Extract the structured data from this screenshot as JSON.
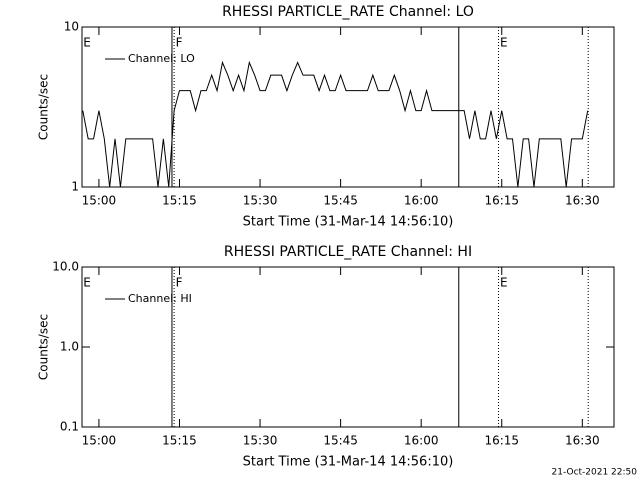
{
  "chart_data": [
    {
      "type": "line",
      "title": "RHESSI PARTICLE_RATE Channel: LO",
      "xlabel": "Start Time (31-Mar-14 14:56:10)",
      "ylabel": "Counts/sec",
      "ylog": true,
      "ylim": [
        1,
        10
      ],
      "yticks": [
        1,
        10
      ],
      "xlim": [
        896.85,
        995.9
      ],
      "xticks": [
        {
          "value": 900,
          "label": "15:00"
        },
        {
          "value": 915,
          "label": "15:15"
        },
        {
          "value": 930,
          "label": "15:30"
        },
        {
          "value": 945,
          "label": "15:45"
        },
        {
          "value": 960,
          "label": "16:00"
        },
        {
          "value": 975,
          "label": "16:15"
        },
        {
          "value": 990,
          "label": "16:30"
        }
      ],
      "legend": "upper left",
      "series": [
        {
          "name": "Channel: LO",
          "color": "#000000",
          "x": [
            897,
            898,
            899,
            900,
            901,
            902,
            903,
            904,
            905,
            906,
            907,
            908,
            909,
            910,
            911,
            912,
            913,
            914,
            915,
            916,
            917,
            918,
            919,
            920,
            921,
            922,
            923,
            924,
            925,
            926,
            927,
            928,
            929,
            930,
            931,
            932,
            933,
            934,
            935,
            936,
            937,
            938,
            939,
            940,
            941,
            942,
            943,
            944,
            945,
            946,
            947,
            948,
            949,
            950,
            951,
            952,
            953,
            954,
            955,
            956,
            957,
            958,
            959,
            960,
            961,
            962,
            963,
            964,
            965,
            966,
            967,
            968,
            969,
            970,
            971,
            972,
            973,
            974,
            975,
            976,
            977,
            978,
            979,
            980,
            981,
            982,
            983,
            984,
            985,
            986,
            987,
            988,
            989,
            990,
            991
          ],
          "values": [
            3,
            2,
            2,
            3,
            2,
            1,
            2,
            1,
            2,
            2,
            2,
            2,
            2,
            2,
            1,
            2,
            1,
            3,
            4,
            4,
            4,
            3,
            4,
            4,
            5,
            4,
            6,
            5,
            4,
            5,
            4,
            6,
            5,
            4,
            4,
            5,
            5,
            5,
            4,
            5,
            6,
            5,
            5,
            5,
            4,
            5,
            4,
            4,
            5,
            4,
            4,
            4,
            4,
            4,
            5,
            4,
            4,
            4,
            5,
            4,
            3,
            4,
            3,
            3,
            4,
            3,
            3,
            3,
            3,
            3,
            3,
            3,
            2,
            3,
            2,
            2,
            3,
            2,
            3,
            2,
            2,
            1,
            2,
            2,
            1,
            2,
            2,
            2,
            2,
            2,
            1,
            2,
            2,
            2,
            3
          ]
        }
      ],
      "vlines": [
        {
          "x": 913.6,
          "style": "solid"
        },
        {
          "x": 914.0,
          "style": "dotted"
        },
        {
          "x": 967.0,
          "style": "solid"
        },
        {
          "x": 974.4,
          "style": "dotted"
        },
        {
          "x": 991.1,
          "style": "dotted"
        }
      ],
      "annotations": [
        {
          "x": 896.9,
          "label": "E"
        },
        {
          "x": 914.1,
          "label": "F"
        },
        {
          "x": 974.5,
          "label": "E"
        }
      ]
    },
    {
      "type": "line",
      "title": "RHESSI PARTICLE_RATE Channel: HI",
      "xlabel": "Start Time (31-Mar-14 14:56:10)",
      "ylabel": "Counts/sec",
      "ylog": true,
      "ylim": [
        0.1,
        10
      ],
      "yticks": [
        0.1,
        {
          "value": 1,
          "label": "1.0"
        },
        {
          "value": 10,
          "label": "10.0"
        }
      ],
      "xlim": [
        896.85,
        995.9
      ],
      "xticks": [
        {
          "value": 900,
          "label": "15:00"
        },
        {
          "value": 915,
          "label": "15:15"
        },
        {
          "value": 930,
          "label": "15:30"
        },
        {
          "value": 945,
          "label": "15:45"
        },
        {
          "value": 960,
          "label": "16:00"
        },
        {
          "value": 975,
          "label": "16:15"
        },
        {
          "value": 990,
          "label": "16:30"
        }
      ],
      "legend": "upper left",
      "series": [
        {
          "name": "Channel: HI",
          "color": "#000000",
          "x": [],
          "values": []
        }
      ],
      "vlines": [
        {
          "x": 913.6,
          "style": "solid"
        },
        {
          "x": 914.0,
          "style": "dotted"
        },
        {
          "x": 967.0,
          "style": "solid"
        },
        {
          "x": 974.4,
          "style": "dotted"
        },
        {
          "x": 991.1,
          "style": "dotted"
        }
      ],
      "annotations": [
        {
          "x": 896.9,
          "label": "E"
        },
        {
          "x": 914.1,
          "label": "F"
        },
        {
          "x": 974.5,
          "label": "E"
        }
      ]
    }
  ],
  "footer": "21-Oct-2021 22:50"
}
